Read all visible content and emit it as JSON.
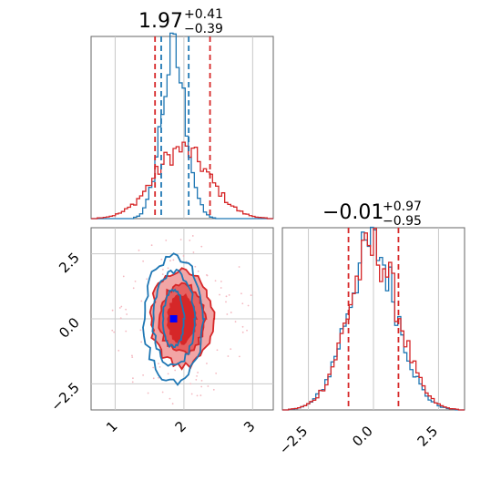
{
  "colors": {
    "red": "#d62728",
    "blue": "#1f77b4",
    "red_fill_light": "#f2a5a5",
    "red_fill_mid": "#e66060",
    "red_fill_dark": "#d62728",
    "marker": "#0000ff"
  },
  "chart_data": [
    {
      "type": "histogram",
      "panel": "top-left",
      "title_main": "1.97",
      "title_sup": "+0.41",
      "title_sub": "−0.39",
      "xlim": [
        0.65,
        3.3
      ],
      "xgrid": [
        1,
        2,
        3
      ],
      "tick_labels": [],
      "series": [
        {
          "name": "",
          "color": "blue",
          "center": 1.85,
          "sd": 0.18,
          "peak": 0.9
        },
        {
          "name": "",
          "color": "red",
          "center": 1.97,
          "sd": 0.4,
          "peak": 0.38
        }
      ],
      "quantile_lines": [
        {
          "x": 1.58,
          "color": "red"
        },
        {
          "x": 1.67,
          "color": "blue"
        },
        {
          "x": 2.07,
          "color": "blue"
        },
        {
          "x": 2.38,
          "color": "red"
        }
      ]
    },
    {
      "type": "contour",
      "panel": "bottom-left",
      "xlim": [
        0.65,
        3.3
      ],
      "ylim": [
        -3.5,
        3.5
      ],
      "xgrid": [
        1,
        2,
        3
      ],
      "ygrid": [
        -2.5,
        0,
        2.5
      ],
      "x_tick_labels": [
        "1",
        "2",
        "3"
      ],
      "y_tick_labels": [
        "2.5",
        "0.0",
        "−2.5"
      ],
      "y_tick_values": [
        2.5,
        0,
        -2.5
      ],
      "red_center": [
        1.97,
        0.0
      ],
      "red_levels_sd": [
        [
          0.45,
          1.8
        ],
        [
          0.33,
          1.3
        ],
        [
          0.2,
          0.9
        ]
      ],
      "blue_center": [
        1.85,
        0.0
      ],
      "blue_levels_sd": [
        [
          0.42,
          2.4
        ],
        [
          0.3,
          1.8
        ],
        [
          0.15,
          1.1
        ]
      ],
      "marker": [
        1.85,
        0.0
      ]
    },
    {
      "type": "histogram",
      "panel": "bottom-right",
      "title_main": "−0.01",
      "title_sup": "+0.97",
      "title_sub": "−0.95",
      "xlim": [
        -3.5,
        3.5
      ],
      "xgrid": [
        -2.5,
        0,
        2.5
      ],
      "tick_labels": [
        "−2.5",
        "0.0",
        "2.5"
      ],
      "tick_values": [
        -2.5,
        0,
        2.5
      ],
      "series": [
        {
          "name": "",
          "color": "blue",
          "center": -0.05,
          "sd": 0.95,
          "peak": 0.9
        },
        {
          "name": "",
          "color": "red",
          "center": -0.01,
          "sd": 0.97,
          "peak": 0.88
        }
      ],
      "quantile_lines": [
        {
          "x": -0.96,
          "color": "red"
        },
        {
          "x": 0.96,
          "color": "red"
        }
      ]
    }
  ]
}
